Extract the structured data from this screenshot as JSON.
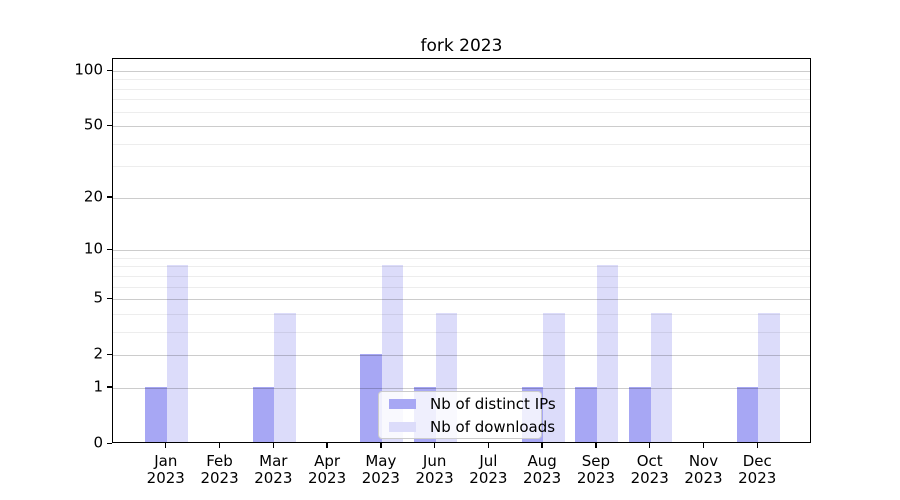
{
  "chart_data": {
    "type": "bar",
    "title": "fork 2023",
    "categories": [
      "Jan",
      "Feb",
      "Mar",
      "Apr",
      "May",
      "Jun",
      "Jul",
      "Aug",
      "Sep",
      "Oct",
      "Nov",
      "Dec"
    ],
    "category_year": "2023",
    "series": [
      {
        "name": "Nb of distinct IPs",
        "color": "#a7a7f4",
        "values": [
          1,
          0,
          1,
          0,
          2,
          1,
          0,
          1,
          1,
          1,
          0,
          1
        ]
      },
      {
        "name": "Nb of downloads",
        "color": "#dcdcfa",
        "values": [
          8,
          0,
          4,
          0,
          8,
          4,
          0,
          4,
          8,
          4,
          0,
          4
        ]
      }
    ],
    "y_axis": {
      "scale": "log1p",
      "ticks": [
        0,
        1,
        2,
        5,
        10,
        20,
        50,
        100
      ],
      "minor_ticks": [
        3,
        4,
        6,
        7,
        8,
        9,
        30,
        40,
        60,
        70,
        80,
        90
      ],
      "ylim": [
        0,
        100
      ]
    },
    "xlabel": "",
    "ylabel": "",
    "grid": true,
    "legend": {
      "position": "lower center",
      "entries": [
        "Nb of distinct IPs",
        "Nb of downloads"
      ]
    }
  }
}
